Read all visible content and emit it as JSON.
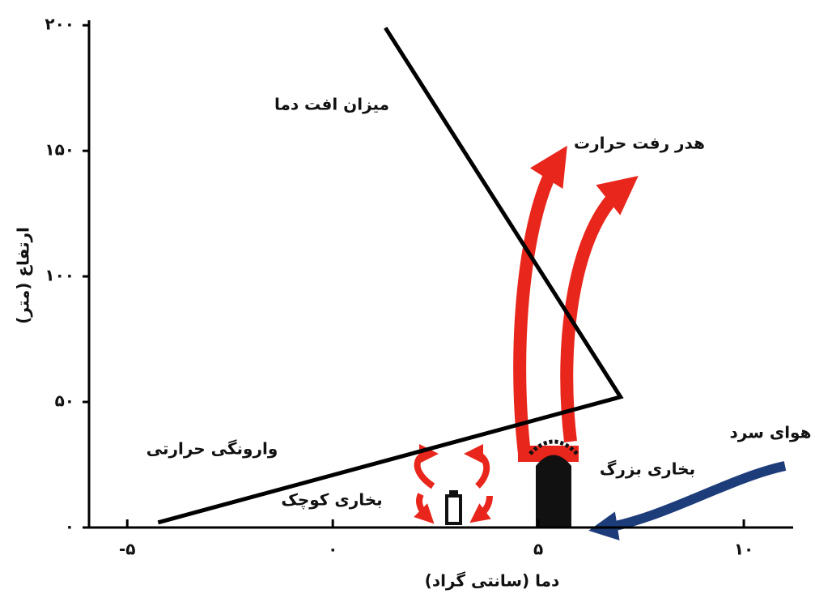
{
  "chart_data": {
    "type": "line",
    "x_label": "دما (سانتی گراد)",
    "y_label": "ارتفاع (متر)",
    "series": [
      {
        "color": "#000000",
        "x": [
          -4.25,
          7.0,
          1.28
        ],
        "values": [
          2,
          52,
          199
        ]
      }
    ],
    "xlim": [
      -5.93,
      11.2
    ],
    "ylim": [
      0,
      202
    ],
    "xticks": [
      {
        "value": -5,
        "label": "-۵"
      },
      {
        "value": 0,
        "label": "۰"
      },
      {
        "value": 5,
        "label": "۵"
      },
      {
        "value": 10,
        "label": "۱۰"
      }
    ],
    "yticks": [
      {
        "value": 0,
        "label": "۰"
      },
      {
        "value": 50,
        "label": "۵۰"
      },
      {
        "value": 100,
        "label": "۱۰۰"
      },
      {
        "value": 150,
        "label": "۱۵۰"
      },
      {
        "value": 200,
        "label": "۲۰۰"
      }
    ],
    "annotations": [
      "میزان افت دما",
      "هدر رفت حرارت",
      "وارونگی حرارتی",
      "بخاری کوچک",
      "بخاری بزرگ",
      "هوای سرد"
    ]
  }
}
